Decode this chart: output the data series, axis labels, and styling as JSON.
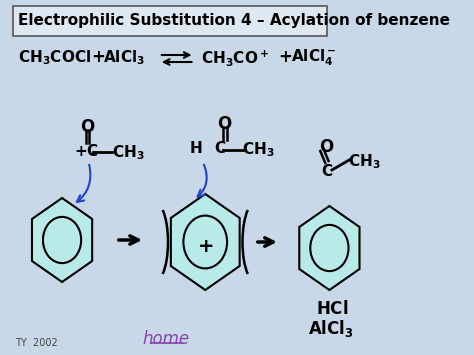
{
  "bg_color": "#c8d8e8",
  "title_box_text": "Electrophilic Substitution 4 – Acylation of benzene",
  "title_fontsize": 11,
  "title_box_color": "#dde8f0",
  "title_box_edge": "#555555",
  "home_text": "home",
  "home_color": "#8844aa",
  "ty_text": "TY  2002",
  "benzene_fill": "#b8eae8",
  "arrow_color": "#000000",
  "blue_arrow_color": "#2244cc"
}
